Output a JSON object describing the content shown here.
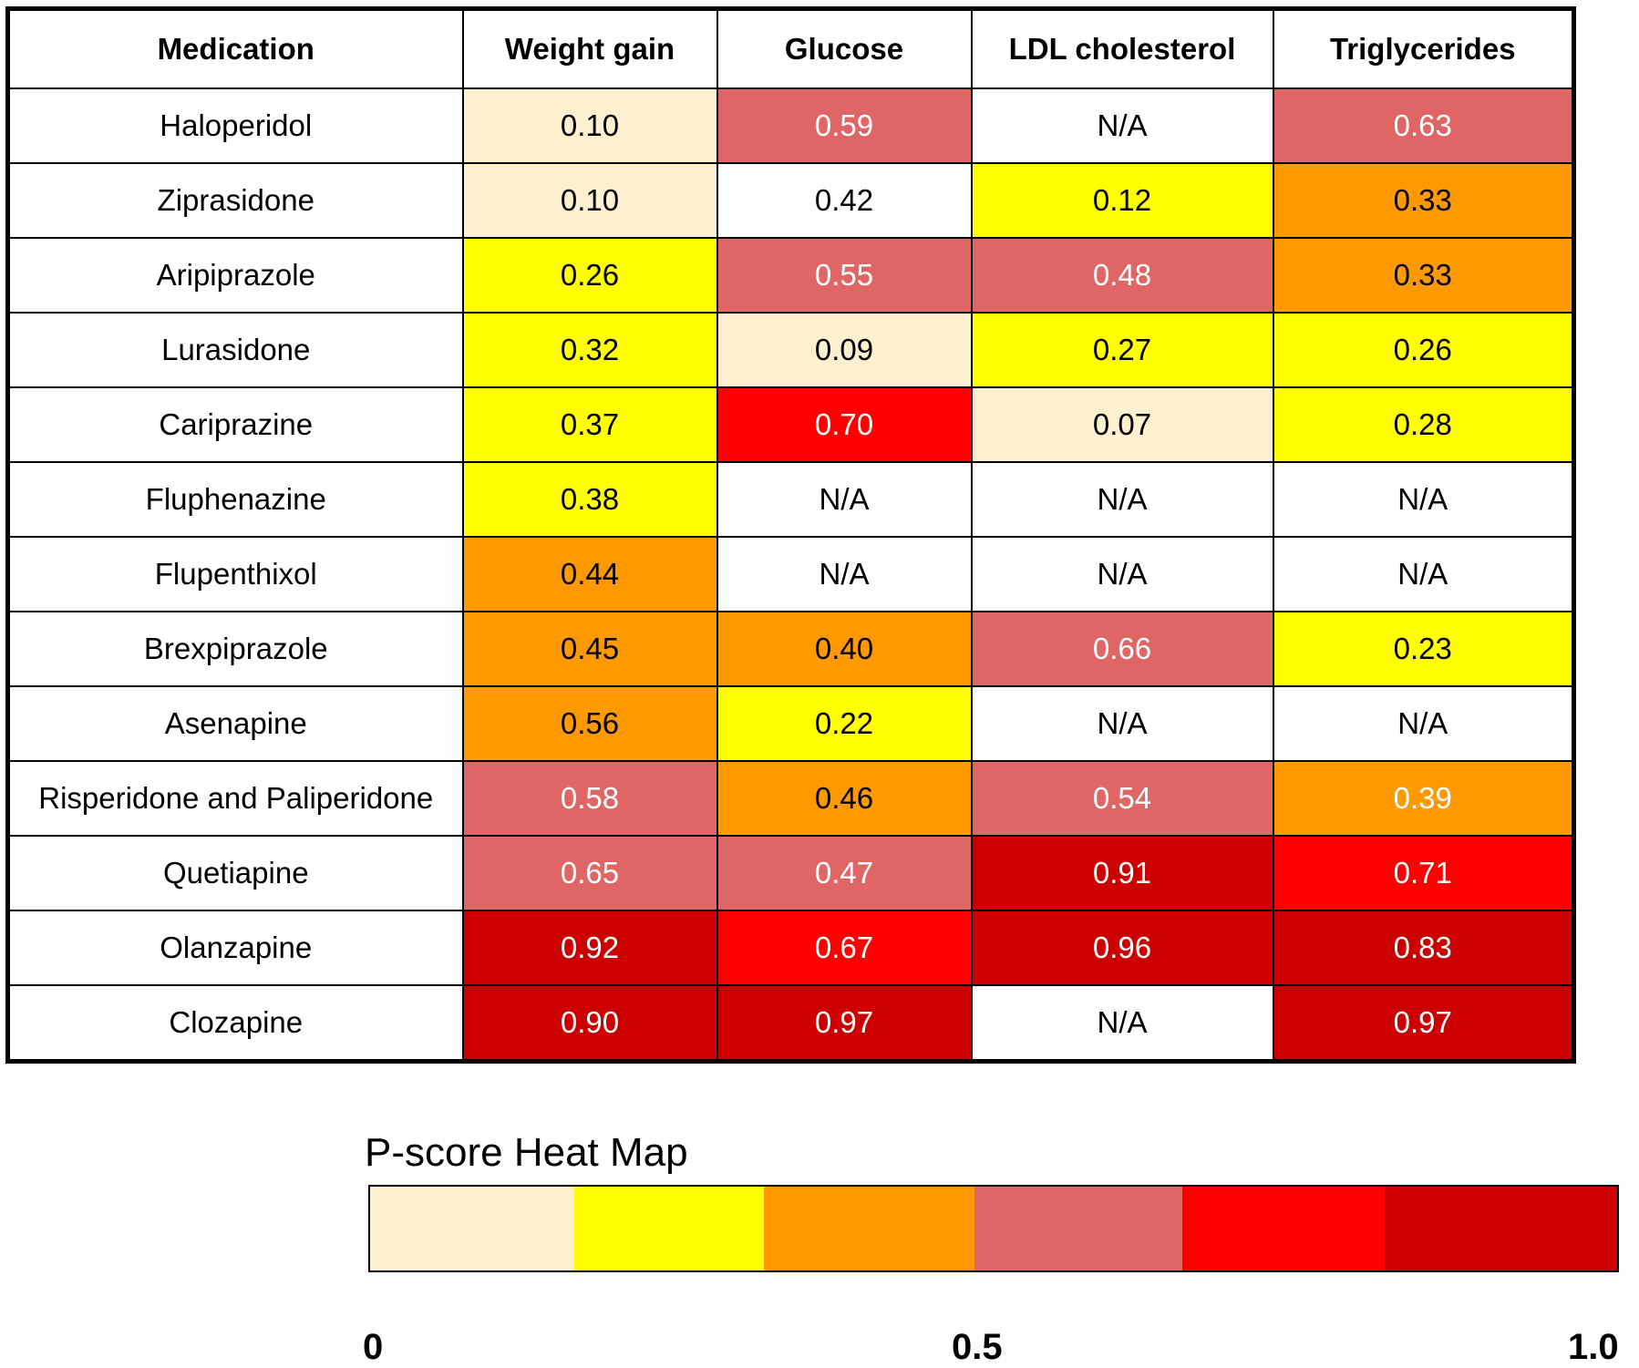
{
  "chart_data": {
    "type": "heatmap",
    "columns": [
      "Medication",
      "Weight gain",
      "Glucose",
      "LDL cholesterol",
      "Triglycerides"
    ],
    "rows": [
      {
        "medication": "Haloperidol",
        "values": [
          "0.10",
          "0.59",
          "N/A",
          "0.63"
        ],
        "colors": [
          "#fdf0cf",
          "#e06666",
          "#ffffff",
          "#e06666"
        ]
      },
      {
        "medication": "Ziprasidone",
        "values": [
          "0.10",
          "0.42",
          "0.12",
          "0.33"
        ],
        "colors": [
          "#fdf0cf",
          "#ffffff",
          "#ffff00",
          "#ff9900"
        ]
      },
      {
        "medication": "Aripiprazole",
        "values": [
          "0.26",
          "0.55",
          "0.48",
          "0.33"
        ],
        "colors": [
          "#ffff00",
          "#e06666",
          "#e06666",
          "#ff9900"
        ]
      },
      {
        "medication": "Lurasidone",
        "values": [
          "0.32",
          "0.09",
          "0.27",
          "0.26"
        ],
        "colors": [
          "#ffff00",
          "#fdf0cf",
          "#ffff00",
          "#ffff00"
        ]
      },
      {
        "medication": "Cariprazine",
        "values": [
          "0.37",
          "0.70",
          "0.07",
          "0.28"
        ],
        "colors": [
          "#ffff00",
          "#ff0000",
          "#fdf0cf",
          "#ffff00"
        ]
      },
      {
        "medication": "Fluphenazine",
        "values": [
          "0.38",
          "N/A",
          "N/A",
          "N/A"
        ],
        "colors": [
          "#ffff00",
          "#ffffff",
          "#ffffff",
          "#ffffff"
        ]
      },
      {
        "medication": "Flupenthixol",
        "values": [
          "0.44",
          "N/A",
          "N/A",
          "N/A"
        ],
        "colors": [
          "#ff9900",
          "#ffffff",
          "#ffffff",
          "#ffffff"
        ]
      },
      {
        "medication": "Brexpiprazole",
        "values": [
          "0.45",
          "0.40",
          "0.66",
          "0.23"
        ],
        "colors": [
          "#ff9900",
          "#ff9900",
          "#e06666",
          "#ffff00"
        ]
      },
      {
        "medication": "Asenapine",
        "values": [
          "0.56",
          "0.22",
          "N/A",
          "N/A"
        ],
        "colors": [
          "#ff9900",
          "#ffff00",
          "#ffffff",
          "#ffffff"
        ]
      },
      {
        "medication": "Risperidone and Paliperidone",
        "values": [
          "0.58",
          "0.46",
          "0.54",
          "0.39"
        ],
        "colors": [
          "#e06666",
          "#ff9900",
          "#e06666",
          "#ff9900"
        ]
      },
      {
        "medication": "Quetiapine",
        "values": [
          "0.65",
          "0.47",
          "0.91",
          "0.71"
        ],
        "colors": [
          "#e06666",
          "#e06666",
          "#cc0000",
          "#ff0000"
        ]
      },
      {
        "medication": "Olanzapine",
        "values": [
          "0.92",
          "0.67",
          "0.96",
          "0.83"
        ],
        "colors": [
          "#cc0000",
          "#ff0000",
          "#cc0000",
          "#cc0000"
        ]
      },
      {
        "medication": "Clozapine",
        "values": [
          "0.90",
          "0.97",
          "N/A",
          "0.97"
        ],
        "colors": [
          "#cc0000",
          "#cc0000",
          "#ffffff",
          "#cc0000"
        ]
      }
    ],
    "legend": {
      "title": "P-score Heat Map",
      "colors": [
        "#fdf0cf",
        "#ffff00",
        "#ff9900",
        "#e06666",
        "#ff0000",
        "#cc0000"
      ],
      "ticks": [
        "0",
        "0.5",
        "1.0"
      ],
      "range": [
        0,
        1
      ]
    }
  }
}
